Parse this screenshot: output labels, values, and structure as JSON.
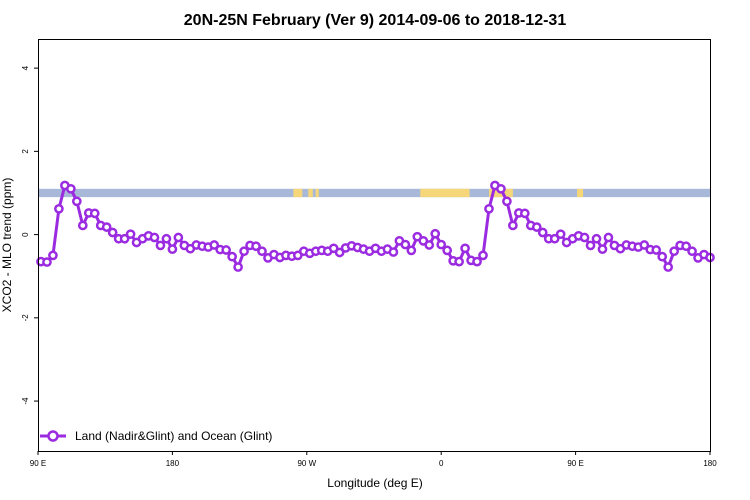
{
  "chart_data": {
    "type": "line",
    "title": "20N-25N February (Ver 9)   2014-09-06 to 2018-12-31",
    "xlabel": "Longitude (deg E)",
    "ylabel": "XCO2 - MLO trend (ppm)",
    "xlim": [
      90,
      540
    ],
    "ylim": [
      -5.2,
      4.7
    ],
    "x_ticks": [
      {
        "value": 90,
        "label": "90 E"
      },
      {
        "value": 180,
        "label": "180"
      },
      {
        "value": 270,
        "label": "90 W"
      },
      {
        "value": 360,
        "label": "0"
      },
      {
        "value": 450,
        "label": "90 E"
      },
      {
        "value": 540,
        "label": "180"
      }
    ],
    "y_ticks": [
      {
        "value": -4,
        "label": "-4"
      },
      {
        "value": -2,
        "label": "-2"
      },
      {
        "value": 0,
        "label": "0"
      },
      {
        "value": 2,
        "label": "2"
      },
      {
        "value": 4,
        "label": "4"
      }
    ],
    "grid": false,
    "legend_position": "bottom-left",
    "land_ocean_band": {
      "y_range": [
        0.9,
        1.1
      ],
      "ocean_color": "#a8b8d8",
      "land_color": "#f5d77a",
      "land_segments": [
        [
          261,
          267
        ],
        [
          271,
          274
        ],
        [
          276,
          277
        ],
        [
          276,
          278
        ],
        [
          346,
          379
        ],
        [
          392,
          408
        ],
        [
          451,
          455
        ]
      ]
    },
    "series": [
      {
        "name": "Land (Nadir&Glint) and Ocean (Glint)",
        "color": "#9b2be0",
        "x": [
          92,
          96,
          100,
          104,
          108,
          112,
          116,
          120,
          124,
          128,
          132,
          136,
          140,
          144,
          148,
          152,
          156,
          160,
          164,
          168,
          172,
          176,
          180,
          184,
          188,
          192,
          196,
          200,
          204,
          208,
          212,
          216,
          220,
          224,
          228,
          232,
          236,
          240,
          244,
          248,
          252,
          256,
          260,
          264,
          268,
          272,
          276,
          280,
          284,
          288,
          292,
          296,
          300,
          304,
          308,
          312,
          316,
          320,
          324,
          328,
          332,
          336,
          340,
          344,
          348,
          352,
          356,
          360,
          364,
          368,
          372,
          376,
          380,
          384,
          388,
          392,
          396,
          400,
          404,
          408,
          412,
          416,
          420,
          424,
          428,
          432,
          436,
          440,
          444,
          448,
          452,
          456,
          460,
          464,
          468,
          472,
          476,
          480,
          484,
          488,
          492,
          496,
          500,
          504,
          508,
          512,
          516,
          520,
          524,
          528,
          532,
          536,
          540
        ],
        "y": [
          -0.65,
          -0.66,
          -0.5,
          0.62,
          1.18,
          1.1,
          0.8,
          0.22,
          0.52,
          0.51,
          0.22,
          0.18,
          0.05,
          -0.1,
          -0.1,
          0.01,
          -0.19,
          -0.1,
          -0.03,
          -0.07,
          -0.26,
          -0.1,
          -0.35,
          -0.07,
          -0.26,
          -0.34,
          -0.25,
          -0.28,
          -0.3,
          -0.25,
          -0.36,
          -0.37,
          -0.53,
          -0.78,
          -0.4,
          -0.26,
          -0.28,
          -0.4,
          -0.56,
          -0.48,
          -0.55,
          -0.5,
          -0.52,
          -0.5,
          -0.4,
          -0.45,
          -0.4,
          -0.38,
          -0.4,
          -0.33,
          -0.43,
          -0.32,
          -0.27,
          -0.31,
          -0.35,
          -0.4,
          -0.33,
          -0.4,
          -0.35,
          -0.42,
          -0.15,
          -0.24,
          -0.38,
          -0.05,
          -0.15,
          -0.25,
          0.02,
          -0.24,
          -0.38,
          -0.63,
          -0.65,
          -0.33,
          -0.62,
          -0.65,
          -0.5,
          0.62,
          1.18,
          1.1,
          0.8,
          0.22,
          0.52,
          0.51,
          0.22,
          0.18,
          0.05,
          -0.1,
          -0.1,
          0.01,
          -0.19,
          -0.1,
          -0.03,
          -0.07,
          -0.26,
          -0.1,
          -0.35,
          -0.07,
          -0.26,
          -0.34,
          -0.25,
          -0.28,
          -0.3,
          -0.25,
          -0.36,
          -0.37,
          -0.53,
          -0.78,
          -0.4,
          -0.26,
          -0.28,
          -0.4,
          -0.56,
          -0.48,
          -0.55
        ]
      }
    ]
  }
}
